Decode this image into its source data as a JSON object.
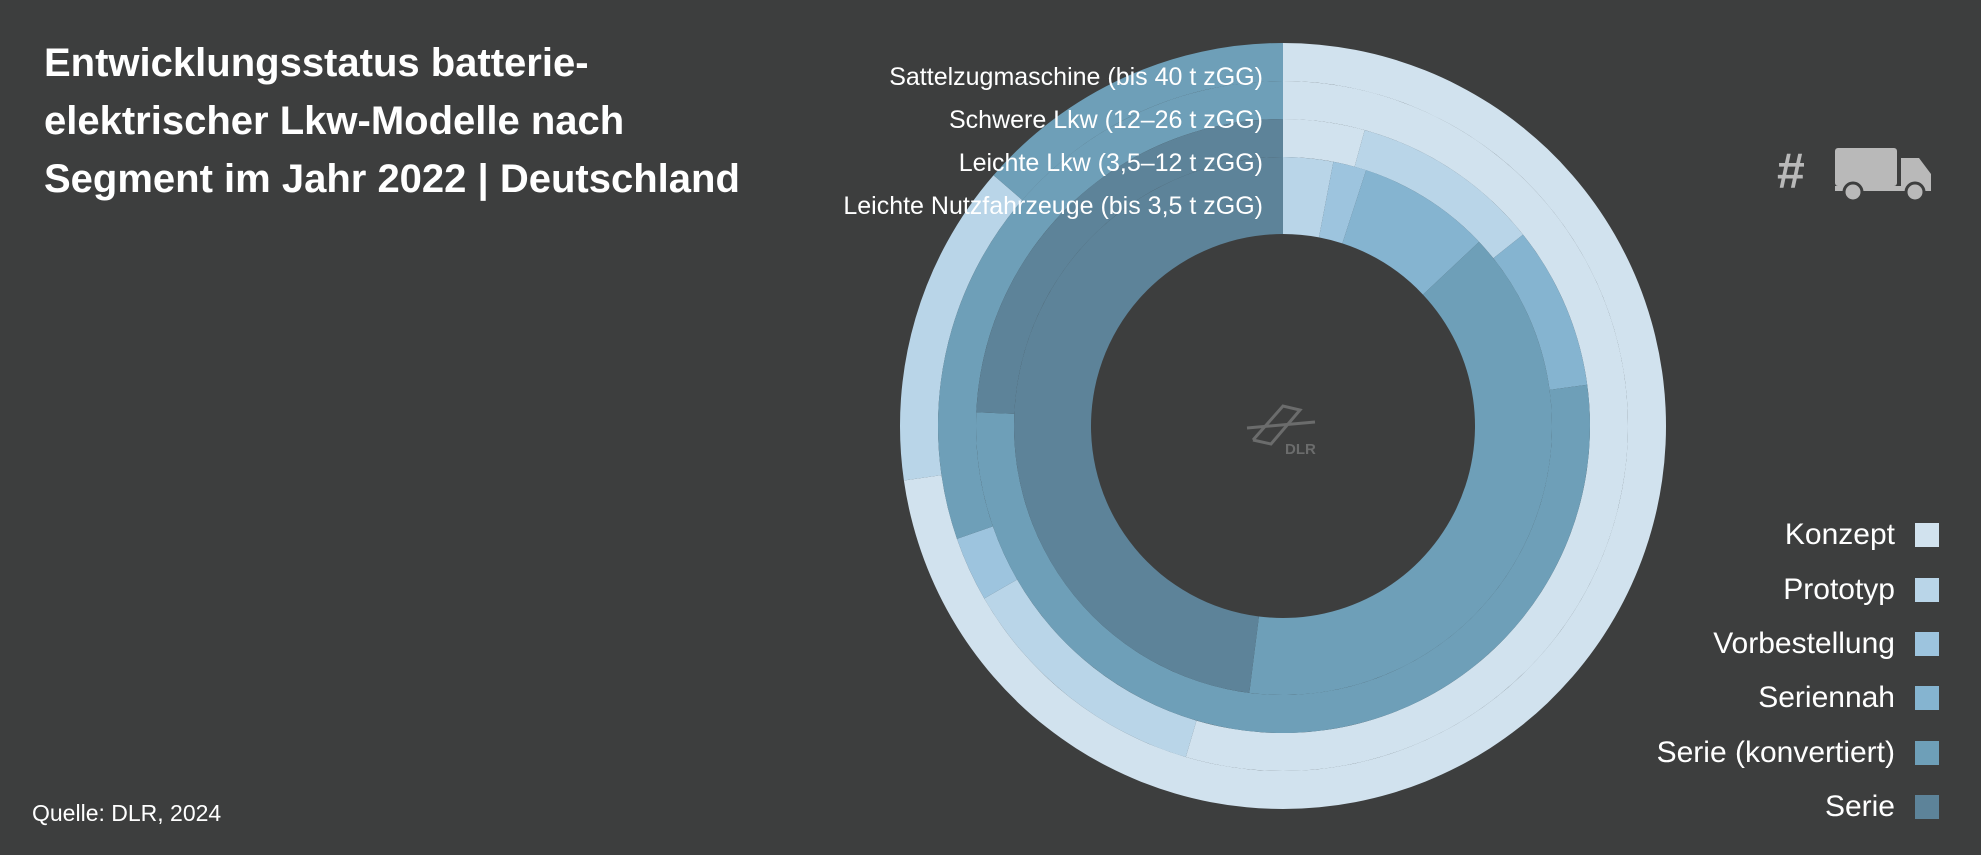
{
  "title_lines": [
    "Entwicklungsstatus batterie-",
    "elektrischer Lkw-Modelle nach",
    "Segment im Jahr 2022 | Deutschland"
  ],
  "source": "Quelle: DLR, 2024",
  "unit_symbol": "#",
  "logo_text": "DLR",
  "icons": {
    "unit": "truck-icon",
    "logo": "dlr-logo-icon"
  },
  "chart_data": {
    "type": "sunburst",
    "rings": [
      {
        "name": "Sattelzugmaschine (bis 40 t zGG)",
        "values": [
          16,
          3,
          0,
          0,
          3,
          0
        ]
      },
      {
        "name": "Schwere Lkw (12–26 t zGG)",
        "values": [
          18,
          4,
          1,
          0,
          10,
          0
        ]
      },
      {
        "name": "Leichte Lkw (3,5–12 t zGG)",
        "values": [
          3,
          7,
          0,
          6,
          37,
          17
        ]
      },
      {
        "name": "Leichte Nutzfahrzeuge (bis 3,5 t zGG)",
        "values": [
          0,
          3,
          2,
          8,
          39,
          48
        ]
      }
    ],
    "categories": [
      "Konzept",
      "Prototyp",
      "Vorbestellung",
      "Seriennah",
      "Serie (konvertiert)",
      "Serie"
    ],
    "colors": [
      "#d1e2ee",
      "#b9d5e8",
      "#9dc4de",
      "#85b4d0",
      "#6e9fb8",
      "#5d8399"
    ],
    "legend_position": "bottom-right"
  }
}
